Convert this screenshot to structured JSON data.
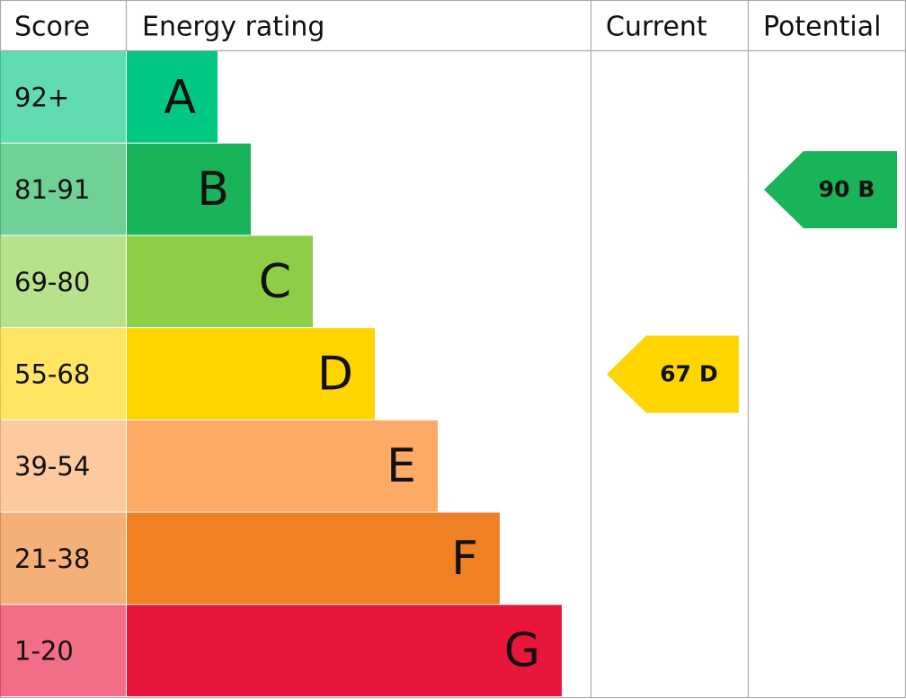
{
  "header": {
    "score": "Score",
    "rating": "Energy rating",
    "current": "Current",
    "potential": "Potential"
  },
  "bands": [
    {
      "score": "92+",
      "letter": "A",
      "color": "#00c781"
    },
    {
      "score": "81-91",
      "letter": "B",
      "color": "#19b459"
    },
    {
      "score": "69-80",
      "letter": "C",
      "color": "#8dce46"
    },
    {
      "score": "55-68",
      "letter": "D",
      "color": "#ffd500"
    },
    {
      "score": "39-54",
      "letter": "E",
      "color": "#fcaa65"
    },
    {
      "score": "21-38",
      "letter": "F",
      "color": "#ef8023"
    },
    {
      "score": "1-20",
      "letter": "G",
      "color": "#e9153b"
    }
  ],
  "current": {
    "score": 67,
    "letter": "D"
  },
  "potential": {
    "score": 90,
    "letter": "B"
  }
}
